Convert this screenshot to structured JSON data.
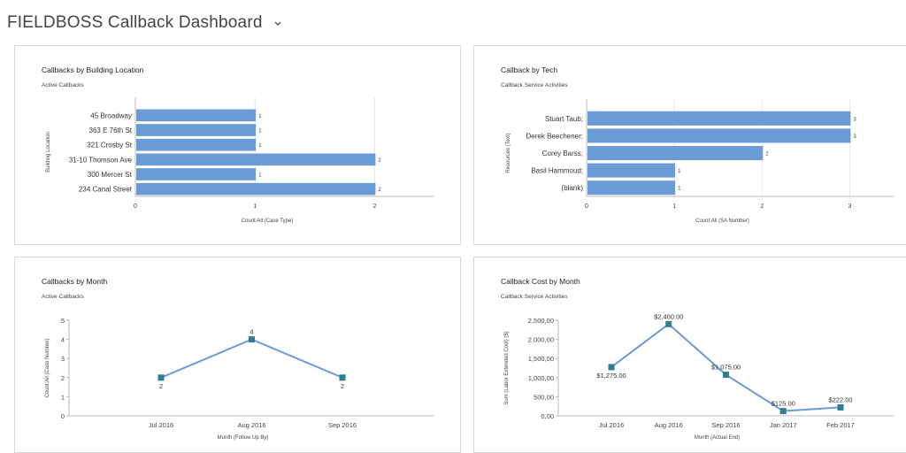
{
  "header": {
    "title": "FIELDBOSS Callback Dashboard",
    "chevron_icon": "chevron-down-icon"
  },
  "colors": {
    "bar": "#6a9bd6",
    "line": "#6a9bd6",
    "marker": "#2f7f91",
    "axis": "#bbbbbb",
    "grid": "#e6e6e6"
  },
  "panels": [
    {
      "title": "Callbacks by Building Location",
      "subtitle": "Active Callbacks",
      "chart_data": {
        "type": "bar",
        "orientation": "horizontal",
        "categories": [
          "45 Broadway",
          "363 E 76th St",
          "321 Crosby St",
          "31-10 Thomson Ave",
          "300 Mercer St",
          "234 Canal Street"
        ],
        "values": [
          1,
          1,
          1,
          2,
          1,
          2
        ],
        "xticks": [
          "0",
          "1",
          "2"
        ],
        "xlim": [
          0,
          2.5
        ],
        "xlabel": "Count:All (Case Type)",
        "ylabel": "Building Location"
      }
    },
    {
      "title": "Callback by Tech",
      "subtitle": "Callback Service Activities",
      "chart_data": {
        "type": "bar",
        "orientation": "horizontal",
        "categories": [
          "Stuart Taub;",
          "Derek Beechener;",
          "Corey Barss;",
          "Basil Hammoud;",
          "(blank)"
        ],
        "values": [
          3,
          3,
          2,
          1,
          1
        ],
        "xticks": [
          "0",
          "1",
          "2",
          "3"
        ],
        "xlim": [
          0,
          3.5
        ],
        "xlabel": "Count:All (SA Number)",
        "ylabel": "Resources (Text)"
      }
    },
    {
      "title": "Callbacks by Month",
      "subtitle": "Active Callbacks",
      "chart_data": {
        "type": "line",
        "categories": [
          "Jul 2016",
          "Aug 2016",
          "Sep 2016"
        ],
        "values": [
          2,
          4,
          2
        ],
        "labels": [
          "2",
          "4",
          "2"
        ],
        "yticks": [
          "0",
          "1",
          "2",
          "3",
          "4",
          "5"
        ],
        "ylim": [
          0,
          5
        ],
        "xlabel": "Month (Follow Up By)",
        "ylabel": "Count:All (Case Number)"
      }
    },
    {
      "title": "Callback Cost by Month",
      "subtitle": "Callback Service Activities",
      "chart_data": {
        "type": "line",
        "categories": [
          "Jul 2016",
          "Aug 2016",
          "Sep 2016",
          "Jan 2017",
          "Feb 2017"
        ],
        "values": [
          1275,
          2400,
          1075,
          125,
          222
        ],
        "labels": [
          "$1,275.00",
          "$2,400.00",
          "$1,075.00",
          "$125.00",
          "$222.00"
        ],
        "yticks": [
          "0,00",
          "500,00",
          "1,000,00",
          "1,500,00",
          "2,000,00",
          "2,500,00"
        ],
        "ylim": [
          0,
          2500
        ],
        "xlabel": "Month (Actual End)",
        "ylabel": "Sum (Labor Extended Cost) ($)"
      }
    }
  ]
}
